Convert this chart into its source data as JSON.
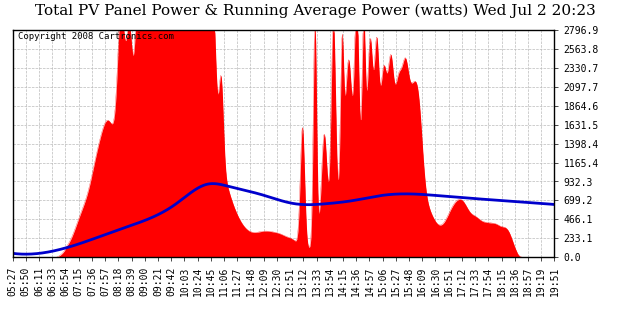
{
  "title": "Total PV Panel Power & Running Average Power (watts) Wed Jul 2 20:23",
  "copyright": "Copyright 2008 Cartronics.com",
  "y_ticks": [
    0.0,
    233.1,
    466.1,
    699.2,
    932.3,
    1165.4,
    1398.4,
    1631.5,
    1864.6,
    2097.7,
    2330.7,
    2563.8,
    2796.9
  ],
  "ylim": [
    0,
    2796.9
  ],
  "x_labels": [
    "05:27",
    "05:50",
    "06:11",
    "06:33",
    "06:54",
    "07:15",
    "07:36",
    "07:57",
    "08:18",
    "08:39",
    "09:00",
    "09:21",
    "09:42",
    "10:03",
    "10:24",
    "10:45",
    "11:06",
    "11:27",
    "11:48",
    "12:09",
    "12:30",
    "12:51",
    "13:12",
    "13:33",
    "13:54",
    "14:15",
    "14:36",
    "14:57",
    "15:06",
    "15:27",
    "15:48",
    "16:09",
    "16:30",
    "16:51",
    "17:12",
    "17:33",
    "17:54",
    "18:15",
    "18:36",
    "18:57",
    "19:19",
    "19:51"
  ],
  "bg_color": "#ffffff",
  "plot_bg_color": "#ffffff",
  "fill_color": "#ff0000",
  "line_color": "#0000cc",
  "grid_color": "#bbbbbb",
  "title_fontsize": 11,
  "copyright_fontsize": 6.5,
  "tick_fontsize": 7,
  "ytick_fontsize": 7
}
